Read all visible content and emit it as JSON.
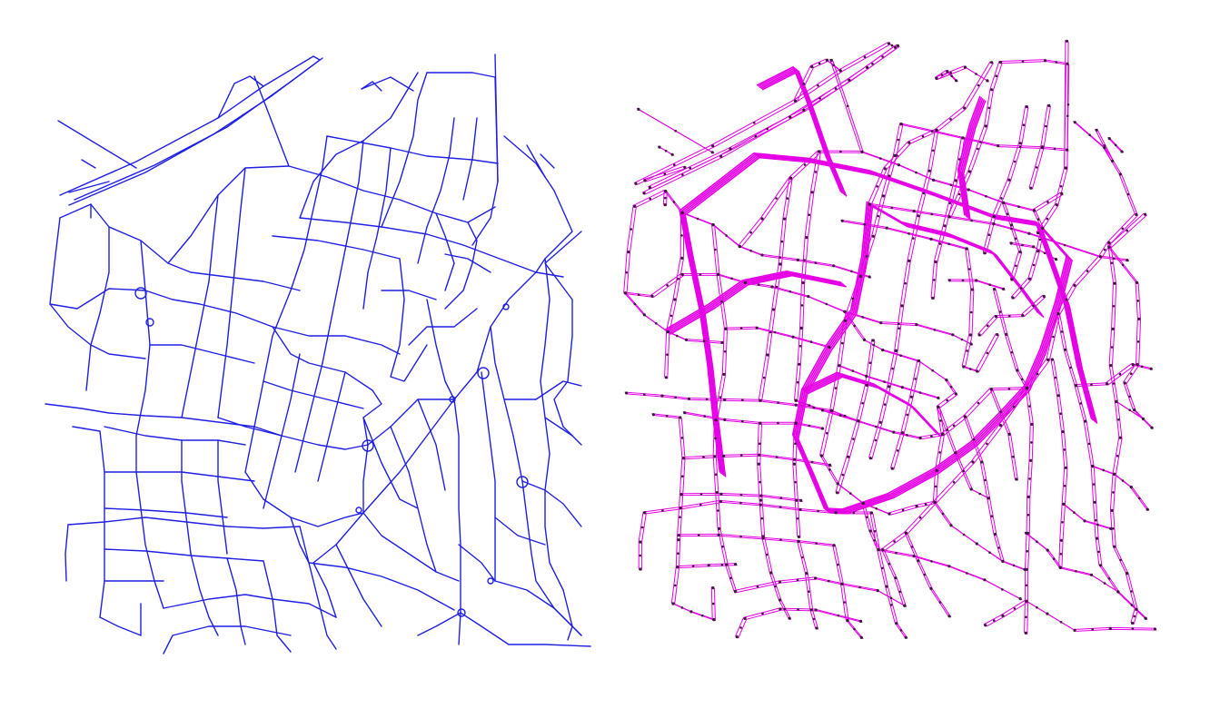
{
  "figure": {
    "panels": [
      {
        "id": "street-network",
        "line_color": "#1f1fe6",
        "description_visible_text": ""
      },
      {
        "id": "routed-graph",
        "line_color": "#e600e6",
        "node_color": "#3a1a3a",
        "description_visible_text": ""
      }
    ]
  }
}
